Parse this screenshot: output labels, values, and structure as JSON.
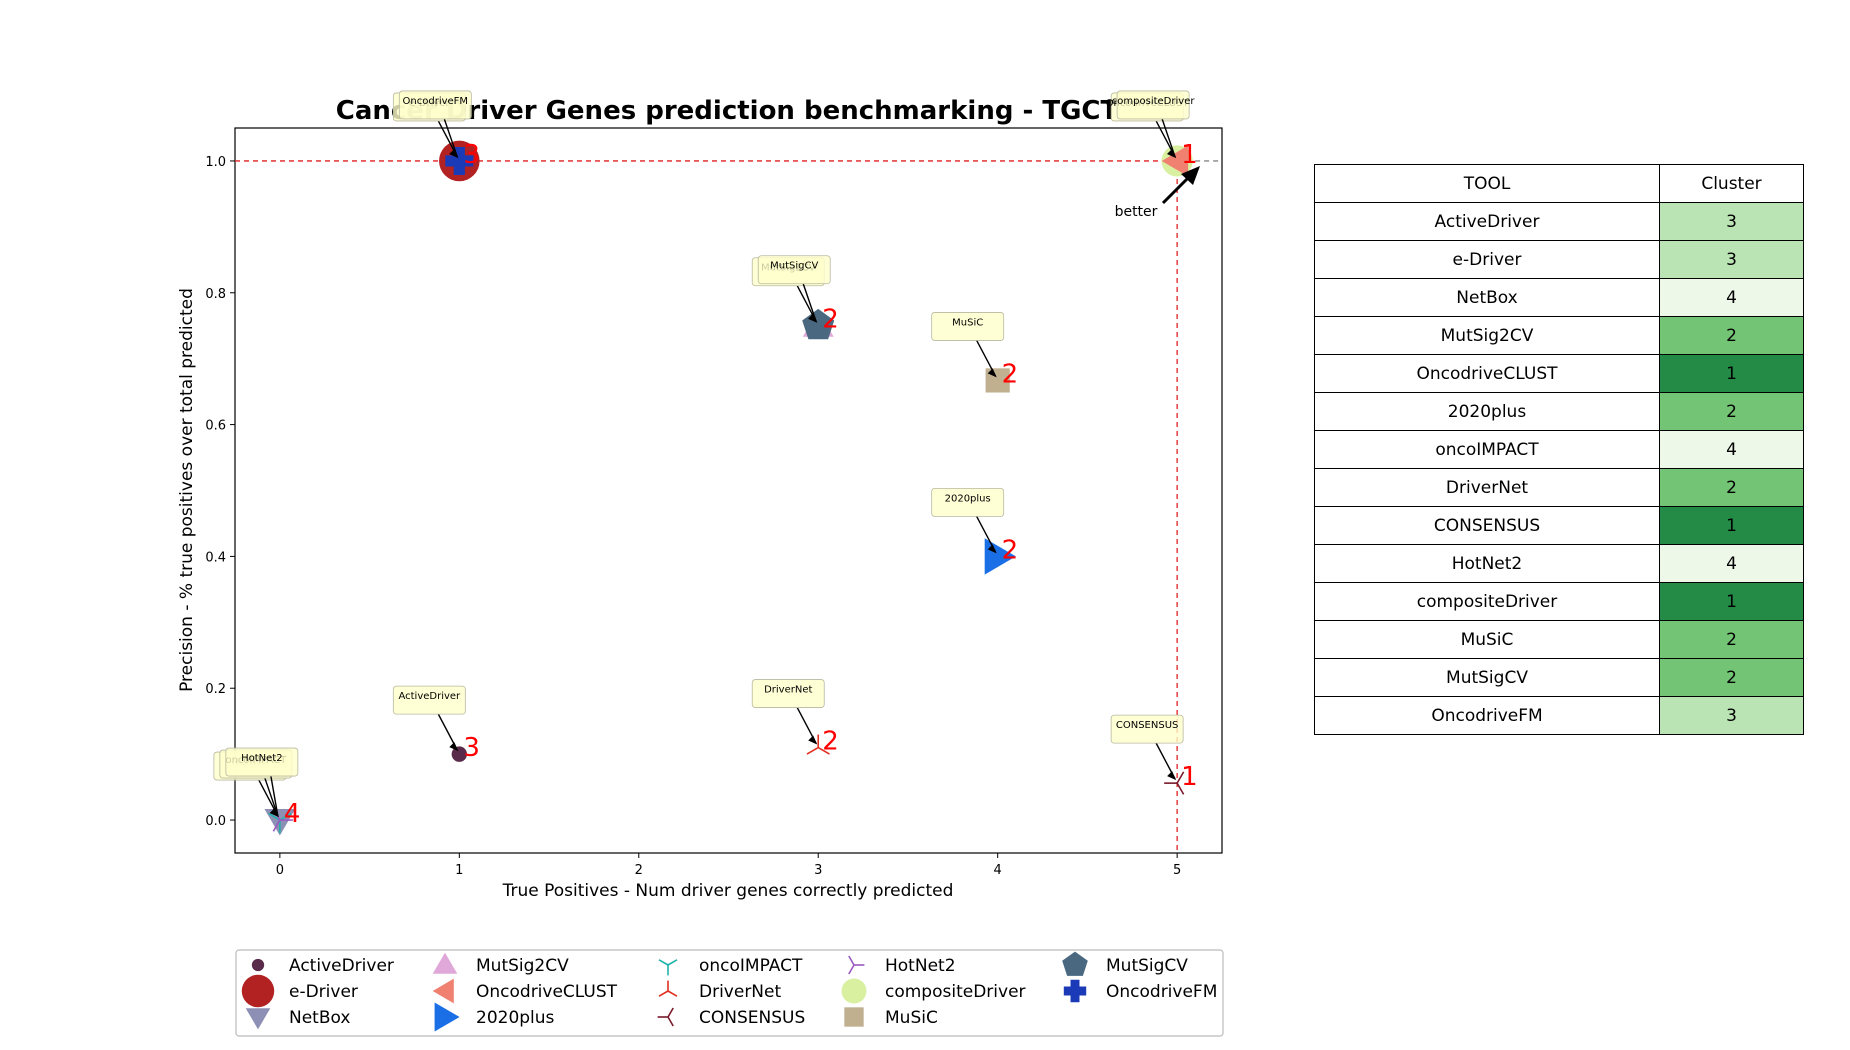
{
  "chart_data": {
    "type": "scatter",
    "title": "Cancer Driver Genes prediction benchmarking - TGCT",
    "xlabel": "True Positives - Num driver genes correctly predicted",
    "ylabel": "Precision - % true positives over total predicted",
    "xlim": [
      -0.25,
      5.25
    ],
    "ylim": [
      -0.05,
      1.05
    ],
    "xticks": [
      "0",
      "1",
      "2",
      "3",
      "4",
      "5"
    ],
    "yticks": [
      "0.0",
      "0.2",
      "0.4",
      "0.6",
      "0.8",
      "1.0"
    ],
    "grid": false,
    "pareto_front": {
      "x": 5,
      "y": 1.0
    },
    "better_label": "better",
    "legend_position": "bottom-center",
    "series": [
      {
        "name": "ActiveDriver",
        "x": 1,
        "y": 0.1,
        "marker": "circle-small",
        "color": "#5a2a4a",
        "cluster": "3"
      },
      {
        "name": "e-Driver",
        "x": 1,
        "y": 1.0,
        "marker": "circle-large",
        "color": "#b22222",
        "cluster": "3"
      },
      {
        "name": "NetBox",
        "x": 0,
        "y": 0.0,
        "marker": "triangle-down",
        "color": "#8e8fb5",
        "cluster": "4"
      },
      {
        "name": "MutSig2CV",
        "x": 3,
        "y": 0.75,
        "marker": "triangle-up",
        "color": "#e0a8d8",
        "cluster": "2"
      },
      {
        "name": "OncodriveCLUST",
        "x": 5,
        "y": 1.0,
        "marker": "triangle-left",
        "color": "#f08070",
        "cluster": "1"
      },
      {
        "name": "2020plus",
        "x": 4,
        "y": 0.4,
        "marker": "triangle-right",
        "color": "#1a6ee6",
        "cluster": "2"
      },
      {
        "name": "oncoIMPACT",
        "x": 0,
        "y": 0.0,
        "marker": "tri-down",
        "color": "#20b2aa",
        "cluster": "4"
      },
      {
        "name": "DriverNet",
        "x": 3,
        "y": 0.11,
        "marker": "tri-up",
        "color": "#e03020",
        "cluster": "2"
      },
      {
        "name": "CONSENSUS",
        "x": 5,
        "y": 0.056,
        "marker": "tri-left",
        "color": "#7a1a2a",
        "cluster": "1"
      },
      {
        "name": "HotNet2",
        "x": 0,
        "y": 0.0,
        "marker": "tri-right",
        "color": "#9a5ac0",
        "cluster": "4"
      },
      {
        "name": "compositeDriver",
        "x": 5,
        "y": 1.0,
        "marker": "circle-medium",
        "color": "#d8f0a0",
        "cluster": "1"
      },
      {
        "name": "MuSiC",
        "x": 4,
        "y": 0.667,
        "marker": "square",
        "color": "#c0b090",
        "cluster": "2"
      },
      {
        "name": "MutSigCV",
        "x": 3,
        "y": 0.75,
        "marker": "pentagon",
        "color": "#4a6880",
        "cluster": "2"
      },
      {
        "name": "OncodriveFM",
        "x": 1,
        "y": 1.0,
        "marker": "plus",
        "color": "#1a3ab8",
        "cluster": "3"
      }
    ],
    "cluster_labels": [
      {
        "x": 1,
        "y": 1.0,
        "label": "3"
      },
      {
        "x": 5,
        "y": 1.0,
        "label": "1"
      },
      {
        "x": 3,
        "y": 0.75,
        "label": "2"
      },
      {
        "x": 4,
        "y": 0.667,
        "label": "2"
      },
      {
        "x": 4,
        "y": 0.4,
        "label": "2"
      },
      {
        "x": 1,
        "y": 0.1,
        "label": "3"
      },
      {
        "x": 3,
        "y": 0.11,
        "label": "2"
      },
      {
        "x": 5,
        "y": 0.056,
        "label": "1"
      },
      {
        "x": 0,
        "y": 0.0,
        "label": "4"
      }
    ]
  },
  "cluster_table": {
    "headers": [
      "TOOL",
      "Cluster"
    ],
    "rows": [
      {
        "tool": "ActiveDriver",
        "cluster": "3",
        "color": "#bae4b3"
      },
      {
        "tool": "e-Driver",
        "cluster": "3",
        "color": "#bae4b3"
      },
      {
        "tool": "NetBox",
        "cluster": "4",
        "color": "#edf8e9"
      },
      {
        "tool": "MutSig2CV",
        "cluster": "2",
        "color": "#74c476"
      },
      {
        "tool": "OncodriveCLUST",
        "cluster": "1",
        "color": "#238b45"
      },
      {
        "tool": "2020plus",
        "cluster": "2",
        "color": "#74c476"
      },
      {
        "tool": "oncoIMPACT",
        "cluster": "4",
        "color": "#edf8e9"
      },
      {
        "tool": "DriverNet",
        "cluster": "2",
        "color": "#74c476"
      },
      {
        "tool": "CONSENSUS",
        "cluster": "1",
        "color": "#238b45"
      },
      {
        "tool": "HotNet2",
        "cluster": "4",
        "color": "#edf8e9"
      },
      {
        "tool": "compositeDriver",
        "cluster": "1",
        "color": "#238b45"
      },
      {
        "tool": "MuSiC",
        "cluster": "2",
        "color": "#74c476"
      },
      {
        "tool": "MutSigCV",
        "cluster": "2",
        "color": "#74c476"
      },
      {
        "tool": "OncodriveFM",
        "cluster": "3",
        "color": "#bae4b3"
      }
    ]
  }
}
